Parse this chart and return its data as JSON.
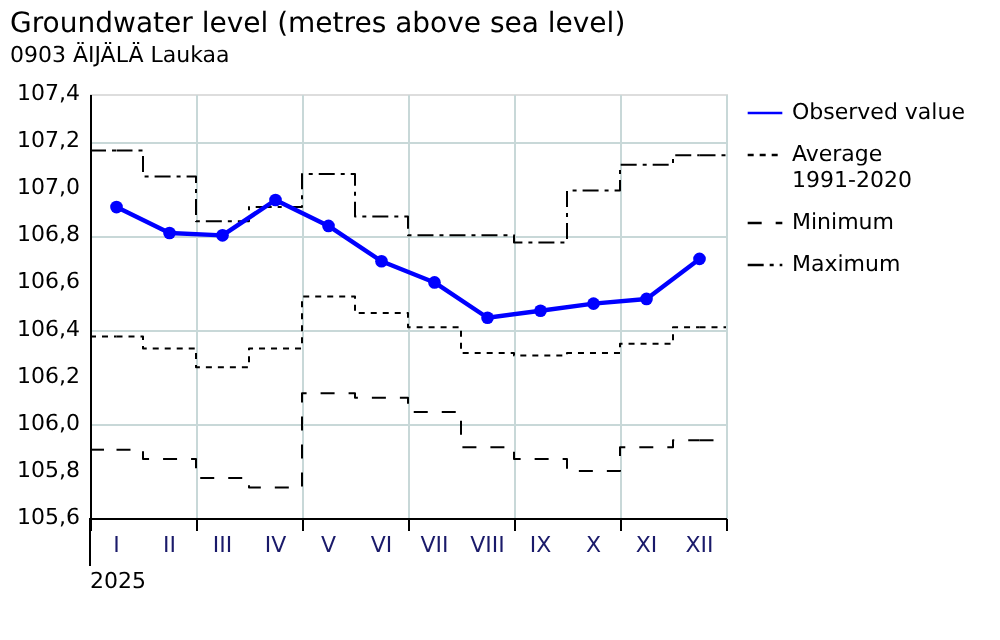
{
  "chart_data": {
    "type": "line",
    "title": "Groundwater level (metres above sea level)",
    "subtitle": "0903 ÄIJÄLÄ Laukaa",
    "xlabel": "2025",
    "categories": [
      "I",
      "II",
      "III",
      "IV",
      "V",
      "VI",
      "VII",
      "VIII",
      "IX",
      "X",
      "XI",
      "XII"
    ],
    "ylim": [
      105.6,
      107.4
    ],
    "yticks": [
      {
        "value": 105.6,
        "label": "105,6"
      },
      {
        "value": 105.8,
        "label": "105,8"
      },
      {
        "value": 106.0,
        "label": "106,0"
      },
      {
        "value": 106.2,
        "label": "106,2"
      },
      {
        "value": 106.4,
        "label": "106,4"
      },
      {
        "value": 106.6,
        "label": "106,6"
      },
      {
        "value": 106.8,
        "label": "106,8"
      },
      {
        "value": 107.0,
        "label": "107,0"
      },
      {
        "value": 107.2,
        "label": "107,2"
      },
      {
        "value": 107.4,
        "label": "107,4"
      }
    ],
    "grid": true,
    "legend": "right",
    "series": [
      {
        "name": "Observed value",
        "color": "#0000ff",
        "marker": "circle",
        "line_style": "solid",
        "values": [
          106.92,
          106.81,
          106.8,
          106.95,
          106.84,
          106.69,
          106.6,
          106.45,
          106.48,
          106.51,
          106.53,
          106.7
        ]
      },
      {
        "name": "Average 1991-2020",
        "type": "step",
        "color": "#000000",
        "marker": "none",
        "line_style": "dotted",
        "values": [
          106.37,
          106.32,
          106.24,
          106.32,
          106.54,
          106.47,
          106.41,
          106.3,
          106.29,
          106.3,
          106.34,
          106.41
        ]
      },
      {
        "name": "Minimum",
        "type": "step",
        "color": "#000000",
        "marker": "none",
        "line_style": "dashed",
        "values": [
          105.89,
          105.85,
          105.77,
          105.73,
          106.13,
          106.11,
          106.05,
          105.9,
          105.85,
          105.8,
          105.9,
          105.93
        ]
      },
      {
        "name": "Maximum",
        "type": "step",
        "color": "#000000",
        "marker": "none",
        "line_style": "dashdot",
        "values": [
          107.16,
          107.05,
          106.86,
          106.92,
          107.06,
          106.88,
          106.8,
          106.8,
          106.77,
          106.99,
          107.1,
          107.14
        ]
      }
    ]
  }
}
